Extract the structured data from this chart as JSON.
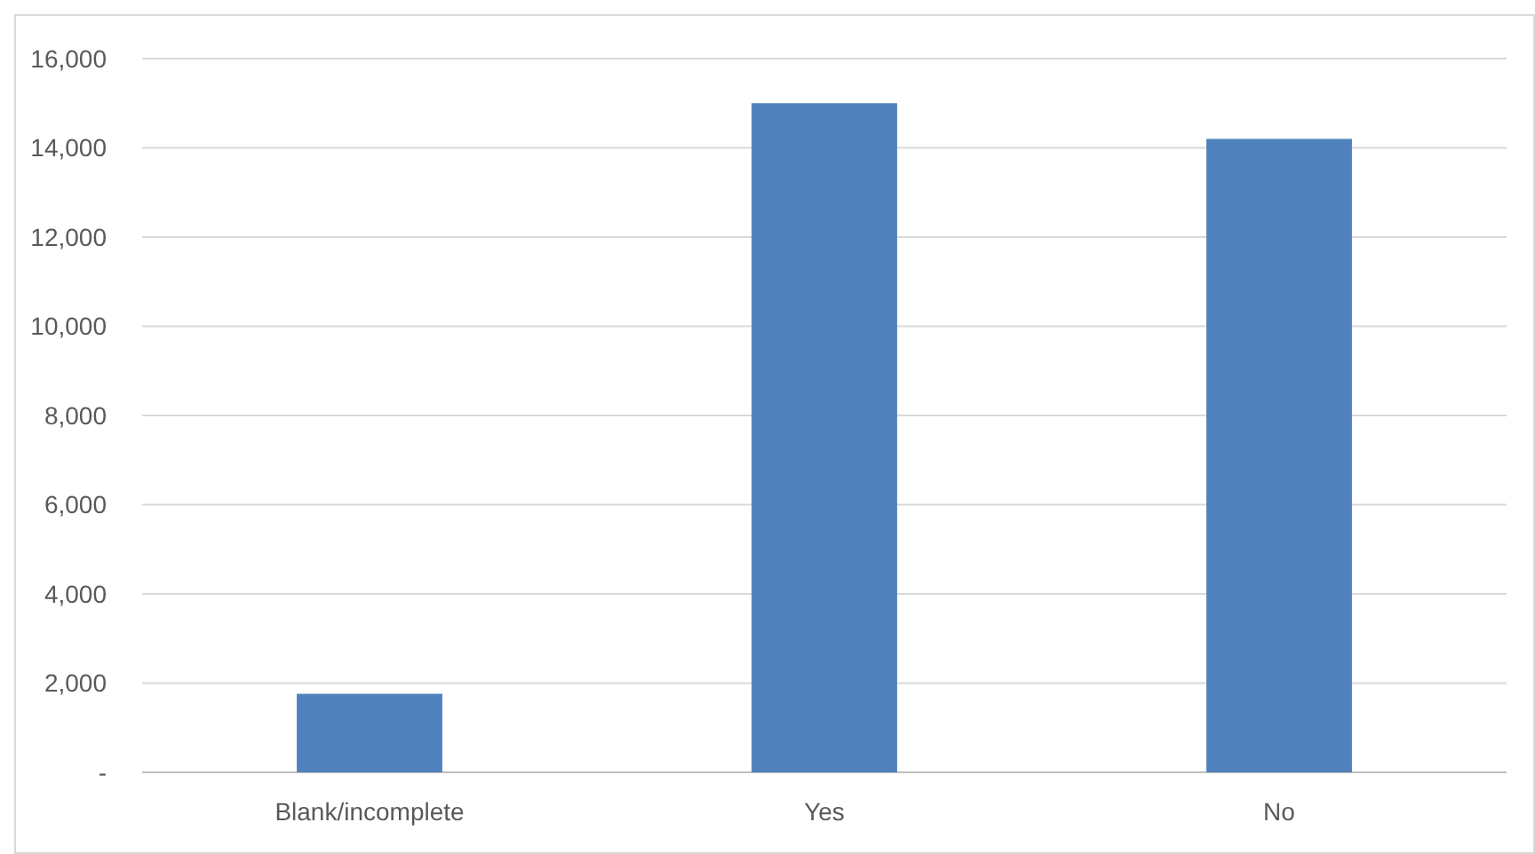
{
  "chart_data": {
    "type": "bar",
    "categories": [
      "Blank/incomplete",
      "Yes",
      "No"
    ],
    "values": [
      1760,
      15000,
      14200
    ],
    "color": "#4f81bd",
    "ylim": [
      0,
      16000
    ],
    "yticks": [
      {
        "value": 0,
        "label": "-"
      },
      {
        "value": 2000,
        "label": "2,000"
      },
      {
        "value": 4000,
        "label": "4,000"
      },
      {
        "value": 6000,
        "label": "6,000"
      },
      {
        "value": 8000,
        "label": "8,000"
      },
      {
        "value": 10000,
        "label": "10,000"
      },
      {
        "value": 12000,
        "label": "12,000"
      },
      {
        "value": 14000,
        "label": "14,000"
      },
      {
        "value": 16000,
        "label": "16,000"
      }
    ],
    "grid": "y"
  }
}
